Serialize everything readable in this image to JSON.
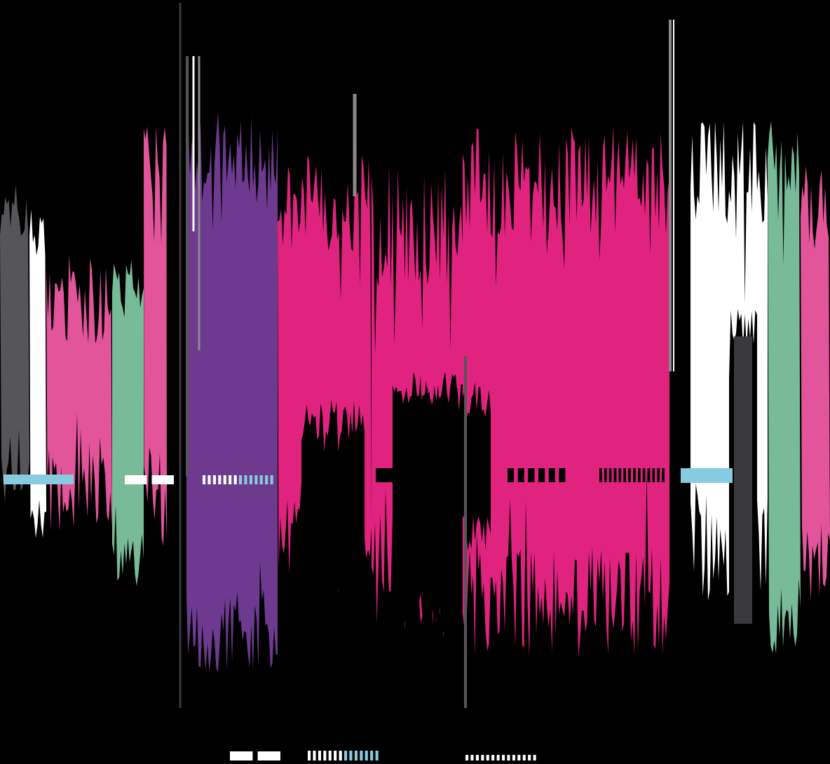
{
  "artwork": {
    "background": "#000000",
    "palette": {
      "magenta": "#E0237F",
      "pink": "#E2559B",
      "purple": "#6E3A8F",
      "green": "#77BB98",
      "white": "#FFFFFF",
      "gray": "#56565A",
      "dark_gray": "#3A3A3C",
      "mid_gray": "#8A8A8A",
      "sky_blue": "#87CBE0",
      "black": "#000000"
    },
    "waveform_bands": [
      {
        "name": "gray-band",
        "color": "gray"
      },
      {
        "name": "white-band-left",
        "color": "white"
      },
      {
        "name": "pink-band-left",
        "color": "pink"
      },
      {
        "name": "green-band-left",
        "color": "green"
      },
      {
        "name": "pink-band-left-2",
        "color": "pink"
      },
      {
        "name": "purple-band",
        "color": "purple"
      },
      {
        "name": "magenta-band-1",
        "color": "magenta"
      },
      {
        "name": "magenta-band-2",
        "color": "magenta"
      },
      {
        "name": "magenta-band-3",
        "color": "magenta"
      },
      {
        "name": "white-band-right",
        "color": "white"
      },
      {
        "name": "green-band-right",
        "color": "green"
      },
      {
        "name": "pink-band-right",
        "color": "pink"
      }
    ],
    "marker_groups": [
      {
        "name": "blue-solid-bar-left",
        "pattern": "solid",
        "colors": [
          "sky_blue"
        ]
      },
      {
        "name": "white-double-bar",
        "pattern": "double",
        "colors": [
          "white"
        ]
      },
      {
        "name": "white-blue-dashes",
        "pattern": "dashes",
        "colors": [
          "white",
          "sky_blue"
        ]
      },
      {
        "name": "black-double-bar",
        "pattern": "double",
        "colors": [
          "black"
        ]
      },
      {
        "name": "black-block-dashes",
        "pattern": "blocks",
        "colors": [
          "black"
        ]
      },
      {
        "name": "black-fine-dashes",
        "pattern": "dashes",
        "colors": [
          "black"
        ]
      },
      {
        "name": "blue-solid-bar-right",
        "pattern": "solid",
        "colors": [
          "sky_blue"
        ]
      },
      {
        "name": "legend-white-double",
        "pattern": "double",
        "colors": [
          "white"
        ]
      },
      {
        "name": "legend-white-blue-dashes",
        "pattern": "dashes",
        "colors": [
          "white",
          "sky_blue"
        ]
      },
      {
        "name": "legend-white-dots",
        "pattern": "dots",
        "colors": [
          "white"
        ]
      }
    ]
  }
}
